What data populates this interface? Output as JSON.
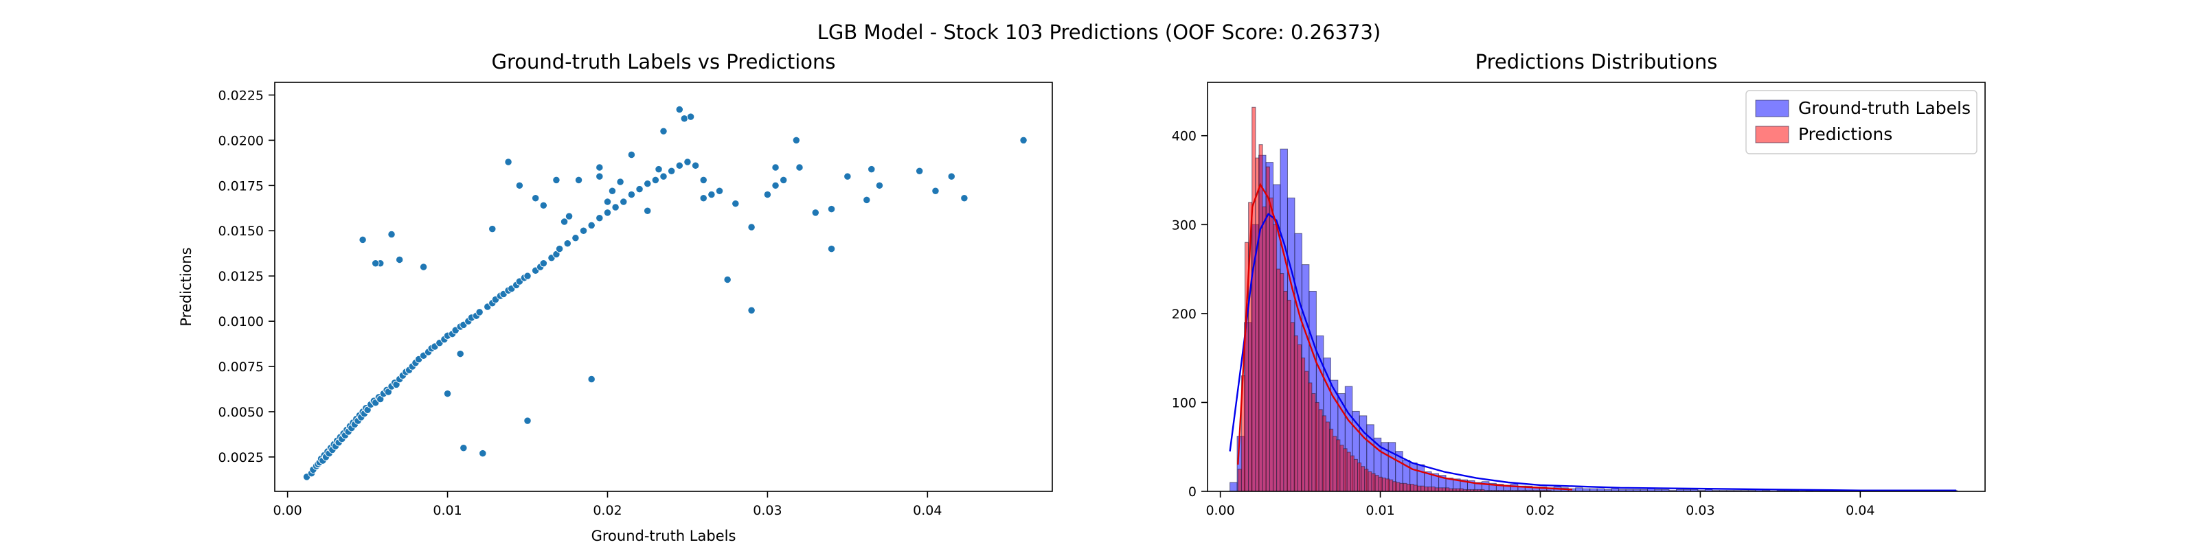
{
  "figure": {
    "title": "LGB Model - Stock 103 Predictions (OOF Score: 0.26373)"
  },
  "colors": {
    "scatter_point": "#1f77b4",
    "ground_truth": "#0000ff",
    "predictions": "#ff0000",
    "kde_ground_truth": "#0000ee",
    "kde_predictions": "#dd0000"
  },
  "chart_data": [
    {
      "type": "scatter",
      "title": "Ground-truth Labels vs Predictions",
      "xlabel": "Ground-truth Labels",
      "ylabel": "Predictions",
      "xlim": [
        -0.0008,
        0.0478
      ],
      "ylim": [
        0.0006,
        0.0232
      ],
      "xticks": [
        0.0,
        0.01,
        0.02,
        0.03,
        0.04
      ],
      "xtick_labels": [
        "0.00",
        "0.01",
        "0.02",
        "0.03",
        "0.04"
      ],
      "yticks": [
        0.0025,
        0.005,
        0.0075,
        0.01,
        0.0125,
        0.015,
        0.0175,
        0.02,
        0.0225
      ],
      "ytick_labels": [
        "0.0025",
        "0.0050",
        "0.0075",
        "0.0100",
        "0.0125",
        "0.0150",
        "0.0175",
        "0.0200",
        "0.0225"
      ],
      "grid": false,
      "x": [
        0.0012,
        0.0015,
        0.0016,
        0.0018,
        0.0019,
        0.002,
        0.0021,
        0.0022,
        0.0023,
        0.0024,
        0.0025,
        0.0026,
        0.0027,
        0.0028,
        0.0029,
        0.003,
        0.0031,
        0.0032,
        0.0033,
        0.0034,
        0.0035,
        0.0036,
        0.0037,
        0.0038,
        0.0039,
        0.004,
        0.0041,
        0.0042,
        0.0043,
        0.0044,
        0.0045,
        0.0046,
        0.0047,
        0.0048,
        0.0049,
        0.005,
        0.0052,
        0.0054,
        0.0055,
        0.0057,
        0.0058,
        0.006,
        0.0062,
        0.0063,
        0.0065,
        0.0067,
        0.0068,
        0.007,
        0.0072,
        0.0074,
        0.0076,
        0.0078,
        0.008,
        0.0082,
        0.0085,
        0.0088,
        0.009,
        0.0092,
        0.0095,
        0.0098,
        0.01,
        0.0103,
        0.0105,
        0.0108,
        0.011,
        0.0113,
        0.0115,
        0.0118,
        0.012,
        0.0125,
        0.0128,
        0.013,
        0.0133,
        0.0135,
        0.0138,
        0.014,
        0.0143,
        0.0145,
        0.0148,
        0.015,
        0.0155,
        0.0158,
        0.016,
        0.0165,
        0.0168,
        0.017,
        0.0175,
        0.018,
        0.0185,
        0.019,
        0.0195,
        0.02,
        0.0205,
        0.021,
        0.0215,
        0.022,
        0.0225,
        0.023,
        0.0235,
        0.024,
        0.0245,
        0.025,
        0.0255,
        0.026,
        0.0265,
        0.027,
        0.028,
        0.029,
        0.03,
        0.0305,
        0.031,
        0.032,
        0.033,
        0.034,
        0.035,
        0.0365,
        0.037,
        0.0395,
        0.0405,
        0.0415,
        0.0423,
        0.046,
        0.0065,
        0.0058,
        0.007,
        0.0055,
        0.0047,
        0.011,
        0.0122,
        0.015,
        0.0173,
        0.0195,
        0.0245,
        0.0248,
        0.0235,
        0.0275,
        0.029,
        0.0145,
        0.0085,
        0.01,
        0.0108,
        0.019,
        0.0195,
        0.0215,
        0.0225,
        0.0252,
        0.026,
        0.0305,
        0.033,
        0.0362,
        0.0318,
        0.034,
        0.0232,
        0.0168,
        0.0155,
        0.016,
        0.0138,
        0.0128,
        0.0182,
        0.0176,
        0.02,
        0.0203,
        0.0208
      ],
      "y": [
        0.0014,
        0.0016,
        0.0018,
        0.002,
        0.0021,
        0.0022,
        0.0024,
        0.0023,
        0.0026,
        0.0025,
        0.0028,
        0.0027,
        0.003,
        0.0029,
        0.0032,
        0.0031,
        0.0034,
        0.0033,
        0.0036,
        0.0035,
        0.0038,
        0.0037,
        0.004,
        0.0039,
        0.0042,
        0.0041,
        0.0044,
        0.0043,
        0.0046,
        0.0045,
        0.0048,
        0.0047,
        0.005,
        0.0049,
        0.0052,
        0.0051,
        0.0054,
        0.0056,
        0.0055,
        0.0058,
        0.0057,
        0.006,
        0.0062,
        0.0061,
        0.0064,
        0.0066,
        0.0065,
        0.0068,
        0.007,
        0.0072,
        0.0073,
        0.0075,
        0.0077,
        0.0079,
        0.0081,
        0.0083,
        0.0085,
        0.0086,
        0.0088,
        0.009,
        0.0092,
        0.0093,
        0.0095,
        0.0097,
        0.0098,
        0.01,
        0.0102,
        0.0103,
        0.0105,
        0.0108,
        0.011,
        0.0112,
        0.0114,
        0.0115,
        0.0117,
        0.0118,
        0.012,
        0.0122,
        0.0124,
        0.0125,
        0.0128,
        0.013,
        0.0132,
        0.0135,
        0.0137,
        0.014,
        0.0143,
        0.0146,
        0.015,
        0.0153,
        0.0157,
        0.016,
        0.0163,
        0.0166,
        0.017,
        0.0173,
        0.0176,
        0.0178,
        0.018,
        0.0183,
        0.0186,
        0.0188,
        0.0186,
        0.0178,
        0.017,
        0.0172,
        0.0165,
        0.0152,
        0.017,
        0.0175,
        0.0178,
        0.0185,
        0.016,
        0.0162,
        0.018,
        0.0184,
        0.0175,
        0.0183,
        0.0172,
        0.018,
        0.0168,
        0.02,
        0.0148,
        0.0132,
        0.0134,
        0.0132,
        0.0145,
        0.003,
        0.0027,
        0.0045,
        0.0155,
        0.018,
        0.0217,
        0.0212,
        0.0205,
        0.0123,
        0.0106,
        0.0175,
        0.013,
        0.006,
        0.0082,
        0.0068,
        0.0185,
        0.0192,
        0.0161,
        0.0213,
        0.0168,
        0.0185,
        0.016,
        0.0167,
        0.02,
        0.014,
        0.0184,
        0.0178,
        0.0168,
        0.0164,
        0.0188,
        0.0151,
        0.0178,
        0.0158,
        0.0166,
        0.0172,
        0.0177
      ]
    },
    {
      "type": "histogram",
      "title": "Predictions Distributions",
      "xlabel": "",
      "ylabel": "",
      "xlim": [
        -0.0008,
        0.0478
      ],
      "ylim": [
        0,
        460
      ],
      "xticks": [
        0.0,
        0.01,
        0.02,
        0.03,
        0.04
      ],
      "xtick_labels": [
        "0.00",
        "0.01",
        "0.02",
        "0.03",
        "0.04"
      ],
      "yticks": [
        0,
        100,
        200,
        300,
        400
      ],
      "ytick_labels": [
        "0",
        "100",
        "200",
        "300",
        "400"
      ],
      "grid": false,
      "legend_position": "top-right",
      "kde": true,
      "series": [
        {
          "name": "Ground-truth Labels",
          "bin_start": 0.0006,
          "bin_width": 0.00045,
          "counts": [
            10,
            62,
            190,
            300,
            378,
            370,
            345,
            385,
            330,
            290,
            255,
            225,
            175,
            150,
            125,
            110,
            118,
            90,
            85,
            75,
            60,
            55,
            55,
            45,
            35,
            32,
            30,
            22,
            20,
            18,
            15,
            14,
            13,
            12,
            10,
            11,
            9,
            8,
            7,
            8,
            6,
            6,
            5,
            5,
            4,
            5,
            4,
            3,
            4,
            3,
            3,
            3,
            2,
            3,
            2,
            2,
            2,
            2,
            3,
            2,
            2,
            1,
            2,
            2,
            2,
            1,
            2,
            1,
            1,
            1,
            1,
            1,
            1,
            2,
            1,
            0,
            1,
            1,
            1,
            0,
            1,
            0,
            1,
            0,
            0,
            1,
            0,
            0,
            0,
            1,
            0,
            0,
            0,
            0,
            0,
            0,
            0,
            0,
            0,
            0,
            1
          ],
          "kde_x": [
            0.0006,
            0.0015,
            0.002,
            0.0025,
            0.003,
            0.0035,
            0.004,
            0.0045,
            0.005,
            0.006,
            0.007,
            0.008,
            0.009,
            0.01,
            0.012,
            0.014,
            0.016,
            0.018,
            0.02,
            0.025,
            0.03,
            0.035,
            0.04,
            0.046
          ],
          "kde_y": [
            45,
            170,
            245,
            295,
            312,
            305,
            278,
            245,
            210,
            158,
            118,
            88,
            66,
            50,
            32,
            22,
            15,
            10,
            7,
            4,
            3,
            2,
            1,
            1
          ]
        },
        {
          "name": "Predictions",
          "bin_start": 0.0011,
          "bin_width": 0.00022,
          "counts": [
            25,
            130,
            280,
            325,
            432,
            375,
            390,
            320,
            365,
            330,
            300,
            250,
            245,
            225,
            215,
            190,
            175,
            165,
            150,
            135,
            122,
            110,
            100,
            92,
            85,
            78,
            70,
            62,
            58,
            52,
            48,
            44,
            40,
            36,
            32,
            28,
            25,
            22,
            20,
            18,
            16,
            15,
            14,
            13,
            11,
            10,
            9,
            9,
            8,
            8,
            7,
            6,
            6,
            5,
            5,
            5,
            4,
            4,
            4,
            4,
            3,
            3,
            3,
            3,
            2,
            2,
            2,
            2,
            2,
            2,
            1,
            1,
            1,
            1,
            1,
            1,
            1,
            1,
            1,
            1,
            1,
            1,
            1,
            1,
            1,
            1,
            1,
            1,
            1
          ],
          "kde_x": [
            0.0011,
            0.0015,
            0.002,
            0.0025,
            0.003,
            0.0035,
            0.004,
            0.0045,
            0.005,
            0.006,
            0.007,
            0.008,
            0.009,
            0.01,
            0.012,
            0.014,
            0.016,
            0.018,
            0.02,
            0.022
          ],
          "kde_y": [
            30,
            160,
            320,
            345,
            330,
            300,
            265,
            228,
            195,
            145,
            108,
            80,
            60,
            45,
            25,
            15,
            9,
            6,
            4,
            2
          ]
        }
      ]
    }
  ]
}
